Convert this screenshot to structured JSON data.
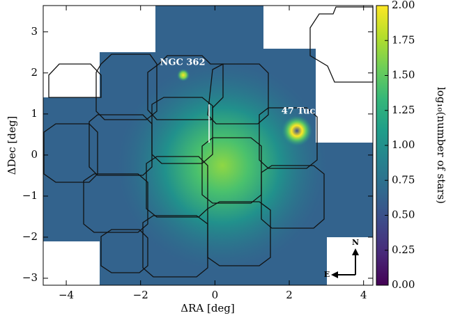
{
  "chart_data": {
    "type": "heatmap",
    "xlabel": "ΔRA [deg]",
    "ylabel": "ΔDec [deg]",
    "xlim": [
      -4.62,
      4.25
    ],
    "ylim": [
      -3.17,
      3.64
    ],
    "xticks": [
      {
        "value": -4,
        "label": "−4"
      },
      {
        "value": -2,
        "label": "−2"
      },
      0,
      2,
      4
    ],
    "yticks": [
      {
        "value": -3,
        "label": "−3"
      },
      {
        "value": -2,
        "label": "−2"
      },
      {
        "value": -1,
        "label": "−1"
      },
      0,
      1,
      2,
      3
    ],
    "colormap": "viridis",
    "colorbar": {
      "label": "log₁₀(number of stars)",
      "lim": [
        0,
        2
      ],
      "ticks": [
        {
          "value": 0,
          "label": "0.00"
        },
        {
          "value": 0.25,
          "label": "0.25"
        },
        {
          "value": 0.5,
          "label": "0.50"
        },
        {
          "value": 0.75,
          "label": "0.75"
        },
        {
          "value": 1,
          "label": "1.00"
        },
        {
          "value": 1.25,
          "label": "1.25"
        },
        {
          "value": 1.5,
          "label": "1.50"
        },
        {
          "value": 1.75,
          "label": "1.75"
        },
        {
          "value": 2,
          "label": "2.00"
        }
      ]
    },
    "annotations": [
      "NGC 362",
      "47 Tuc",
      "N",
      "E"
    ]
  }
}
